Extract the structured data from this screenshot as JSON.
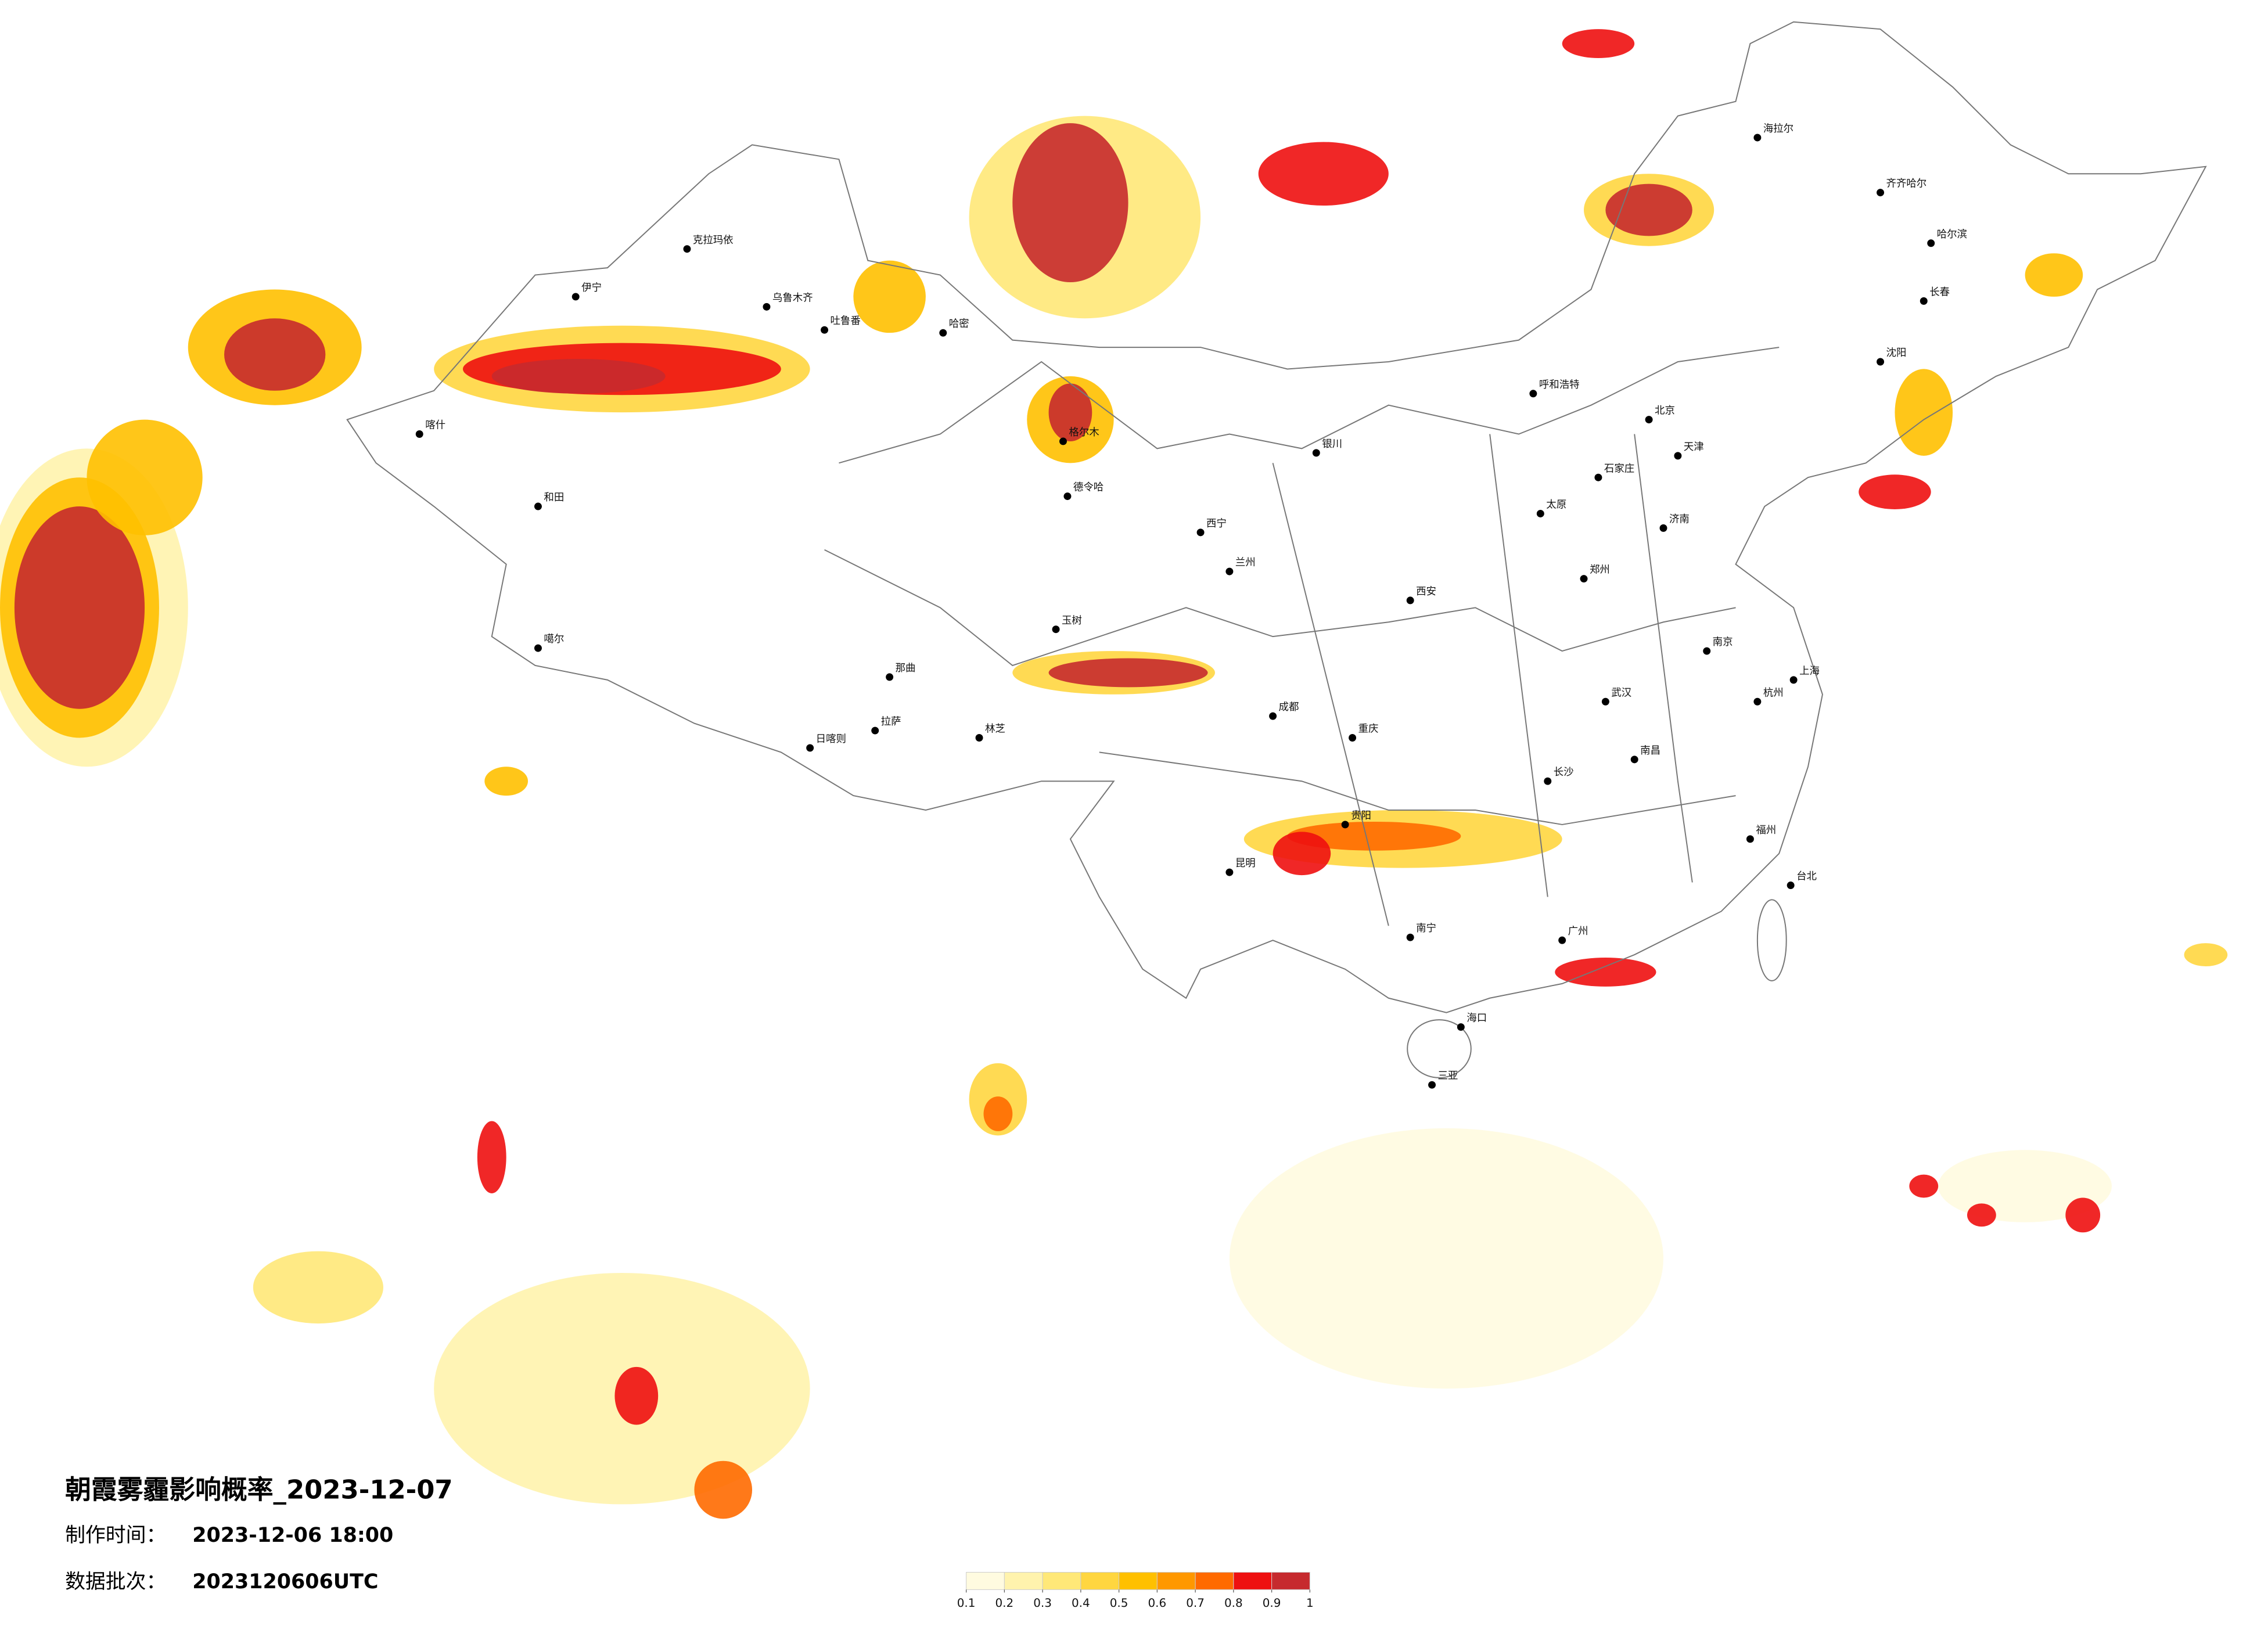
{
  "title": "朝霞雾霾影响概率_2023-12-07",
  "info": [
    {
      "label": "制作时间：",
      "value": "2023-12-06 18:00"
    },
    {
      "label": "数据批次：",
      "value": "2023120606UTC"
    }
  ],
  "legend": {
    "colors": [
      "#fffbe0",
      "#fff3ad",
      "#ffe878",
      "#ffd640",
      "#ffc000",
      "#ff9800",
      "#ff6a00",
      "#ee1010",
      "#c62a2e"
    ],
    "ticks": [
      0.1,
      0.2,
      0.3,
      0.4,
      0.5,
      0.6,
      0.7,
      0.8,
      0.9,
      1
    ]
  },
  "cities": [
    "克拉玛依",
    "伊宁",
    "乌鲁木齐",
    "吐鲁番",
    "哈密",
    "喀什",
    "和田",
    "噶尔",
    "日喀则",
    "拉萨",
    "那曲",
    "林芝",
    "玉树",
    "格尔木",
    "德令哈",
    "西宁",
    "兰州",
    "银川",
    "呼和浩特",
    "北京",
    "天津",
    "石家庄",
    "太原",
    "济南",
    "郑州",
    "西安",
    "成都",
    "重庆",
    "武汉",
    "长沙",
    "南昌",
    "南京",
    "上海",
    "杭州",
    "福州",
    "广州",
    "南宁",
    "昆明",
    "贵阳",
    "海口",
    "三亚",
    "哈尔滨",
    "长春",
    "沈阳",
    "海拉尔",
    "齐齐哈尔",
    "台北"
  ]
}
